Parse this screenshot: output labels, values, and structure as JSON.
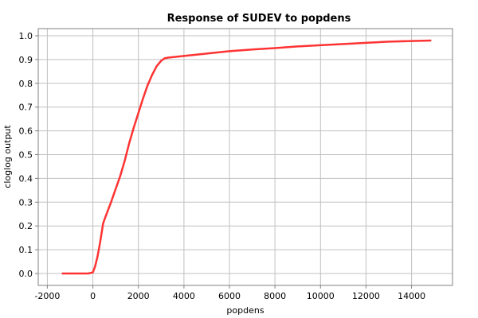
{
  "chart_data": {
    "type": "line",
    "title": "Response of SUDEV to popdens",
    "xlabel": "popdens",
    "ylabel": "cloglog output",
    "xlim": [
      -2400,
      15800
    ],
    "ylim": [
      -0.05,
      1.03
    ],
    "xticks": [
      -2000,
      0,
      2000,
      4000,
      6000,
      8000,
      10000,
      12000,
      14000
    ],
    "yticks": [
      0.0,
      0.1,
      0.2,
      0.3,
      0.4,
      0.5,
      0.6,
      0.7,
      0.8,
      0.9,
      1.0
    ],
    "grid": true,
    "series": [
      {
        "color": "#ff3333",
        "x": [
          -1330,
          -200,
          0,
          100,
          200,
          300,
          400,
          450,
          500,
          600,
          800,
          1000,
          1200,
          1400,
          1600,
          1800,
          2000,
          2200,
          2400,
          2600,
          2800,
          3000,
          3150,
          3300,
          4000,
          5000,
          6000,
          7000,
          8000,
          9000,
          10000,
          11000,
          12000,
          13000,
          14000,
          14830
        ],
        "y": [
          0.0,
          0.0,
          0.005,
          0.03,
          0.07,
          0.12,
          0.18,
          0.21,
          0.225,
          0.25,
          0.3,
          0.355,
          0.41,
          0.475,
          0.55,
          0.615,
          0.675,
          0.735,
          0.79,
          0.835,
          0.872,
          0.895,
          0.905,
          0.908,
          0.915,
          0.925,
          0.935,
          0.942,
          0.948,
          0.955,
          0.96,
          0.965,
          0.97,
          0.975,
          0.978,
          0.98
        ]
      }
    ]
  }
}
